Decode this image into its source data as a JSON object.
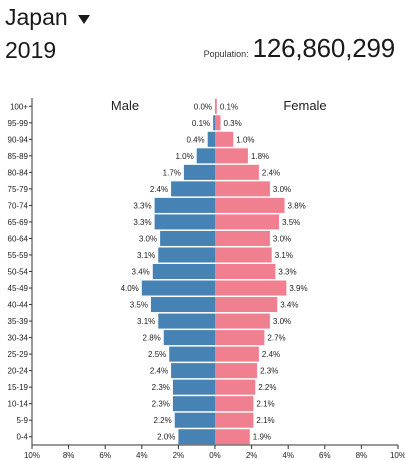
{
  "header": {
    "country": "Japan",
    "year": "2019",
    "population_label": "Population:",
    "population_value": "126,860,299"
  },
  "colors": {
    "male": "#4682b4",
    "female": "#f08090",
    "axis": "#333333"
  },
  "chart_data": {
    "type": "bar",
    "orientation": "horizontal-pyramid",
    "categories": [
      "100+",
      "95-99",
      "90-94",
      "85-89",
      "80-84",
      "75-79",
      "70-74",
      "65-69",
      "60-64",
      "55-59",
      "50-54",
      "45-49",
      "40-44",
      "35-39",
      "30-34",
      "25-29",
      "20-24",
      "15-19",
      "10-14",
      "5-9",
      "0-4"
    ],
    "series": [
      {
        "name": "Male",
        "values": [
          0.0,
          0.1,
          0.4,
          1.0,
          1.7,
          2.4,
          3.3,
          3.3,
          3.0,
          3.1,
          3.4,
          4.0,
          3.5,
          3.1,
          2.8,
          2.5,
          2.4,
          2.3,
          2.3,
          2.2,
          2.0
        ]
      },
      {
        "name": "Female",
        "values": [
          0.1,
          0.3,
          1.0,
          1.8,
          2.4,
          3.0,
          3.8,
          3.5,
          3.0,
          3.1,
          3.3,
          3.9,
          3.4,
          3.0,
          2.7,
          2.4,
          2.3,
          2.2,
          2.1,
          2.1,
          1.9
        ]
      }
    ],
    "xlim": [
      -10,
      10
    ],
    "xticks": [
      "10%",
      "8%",
      "6%",
      "4%",
      "2%",
      "0%",
      "2%",
      "4%",
      "6%",
      "8%",
      "10%"
    ],
    "unit": "%"
  }
}
